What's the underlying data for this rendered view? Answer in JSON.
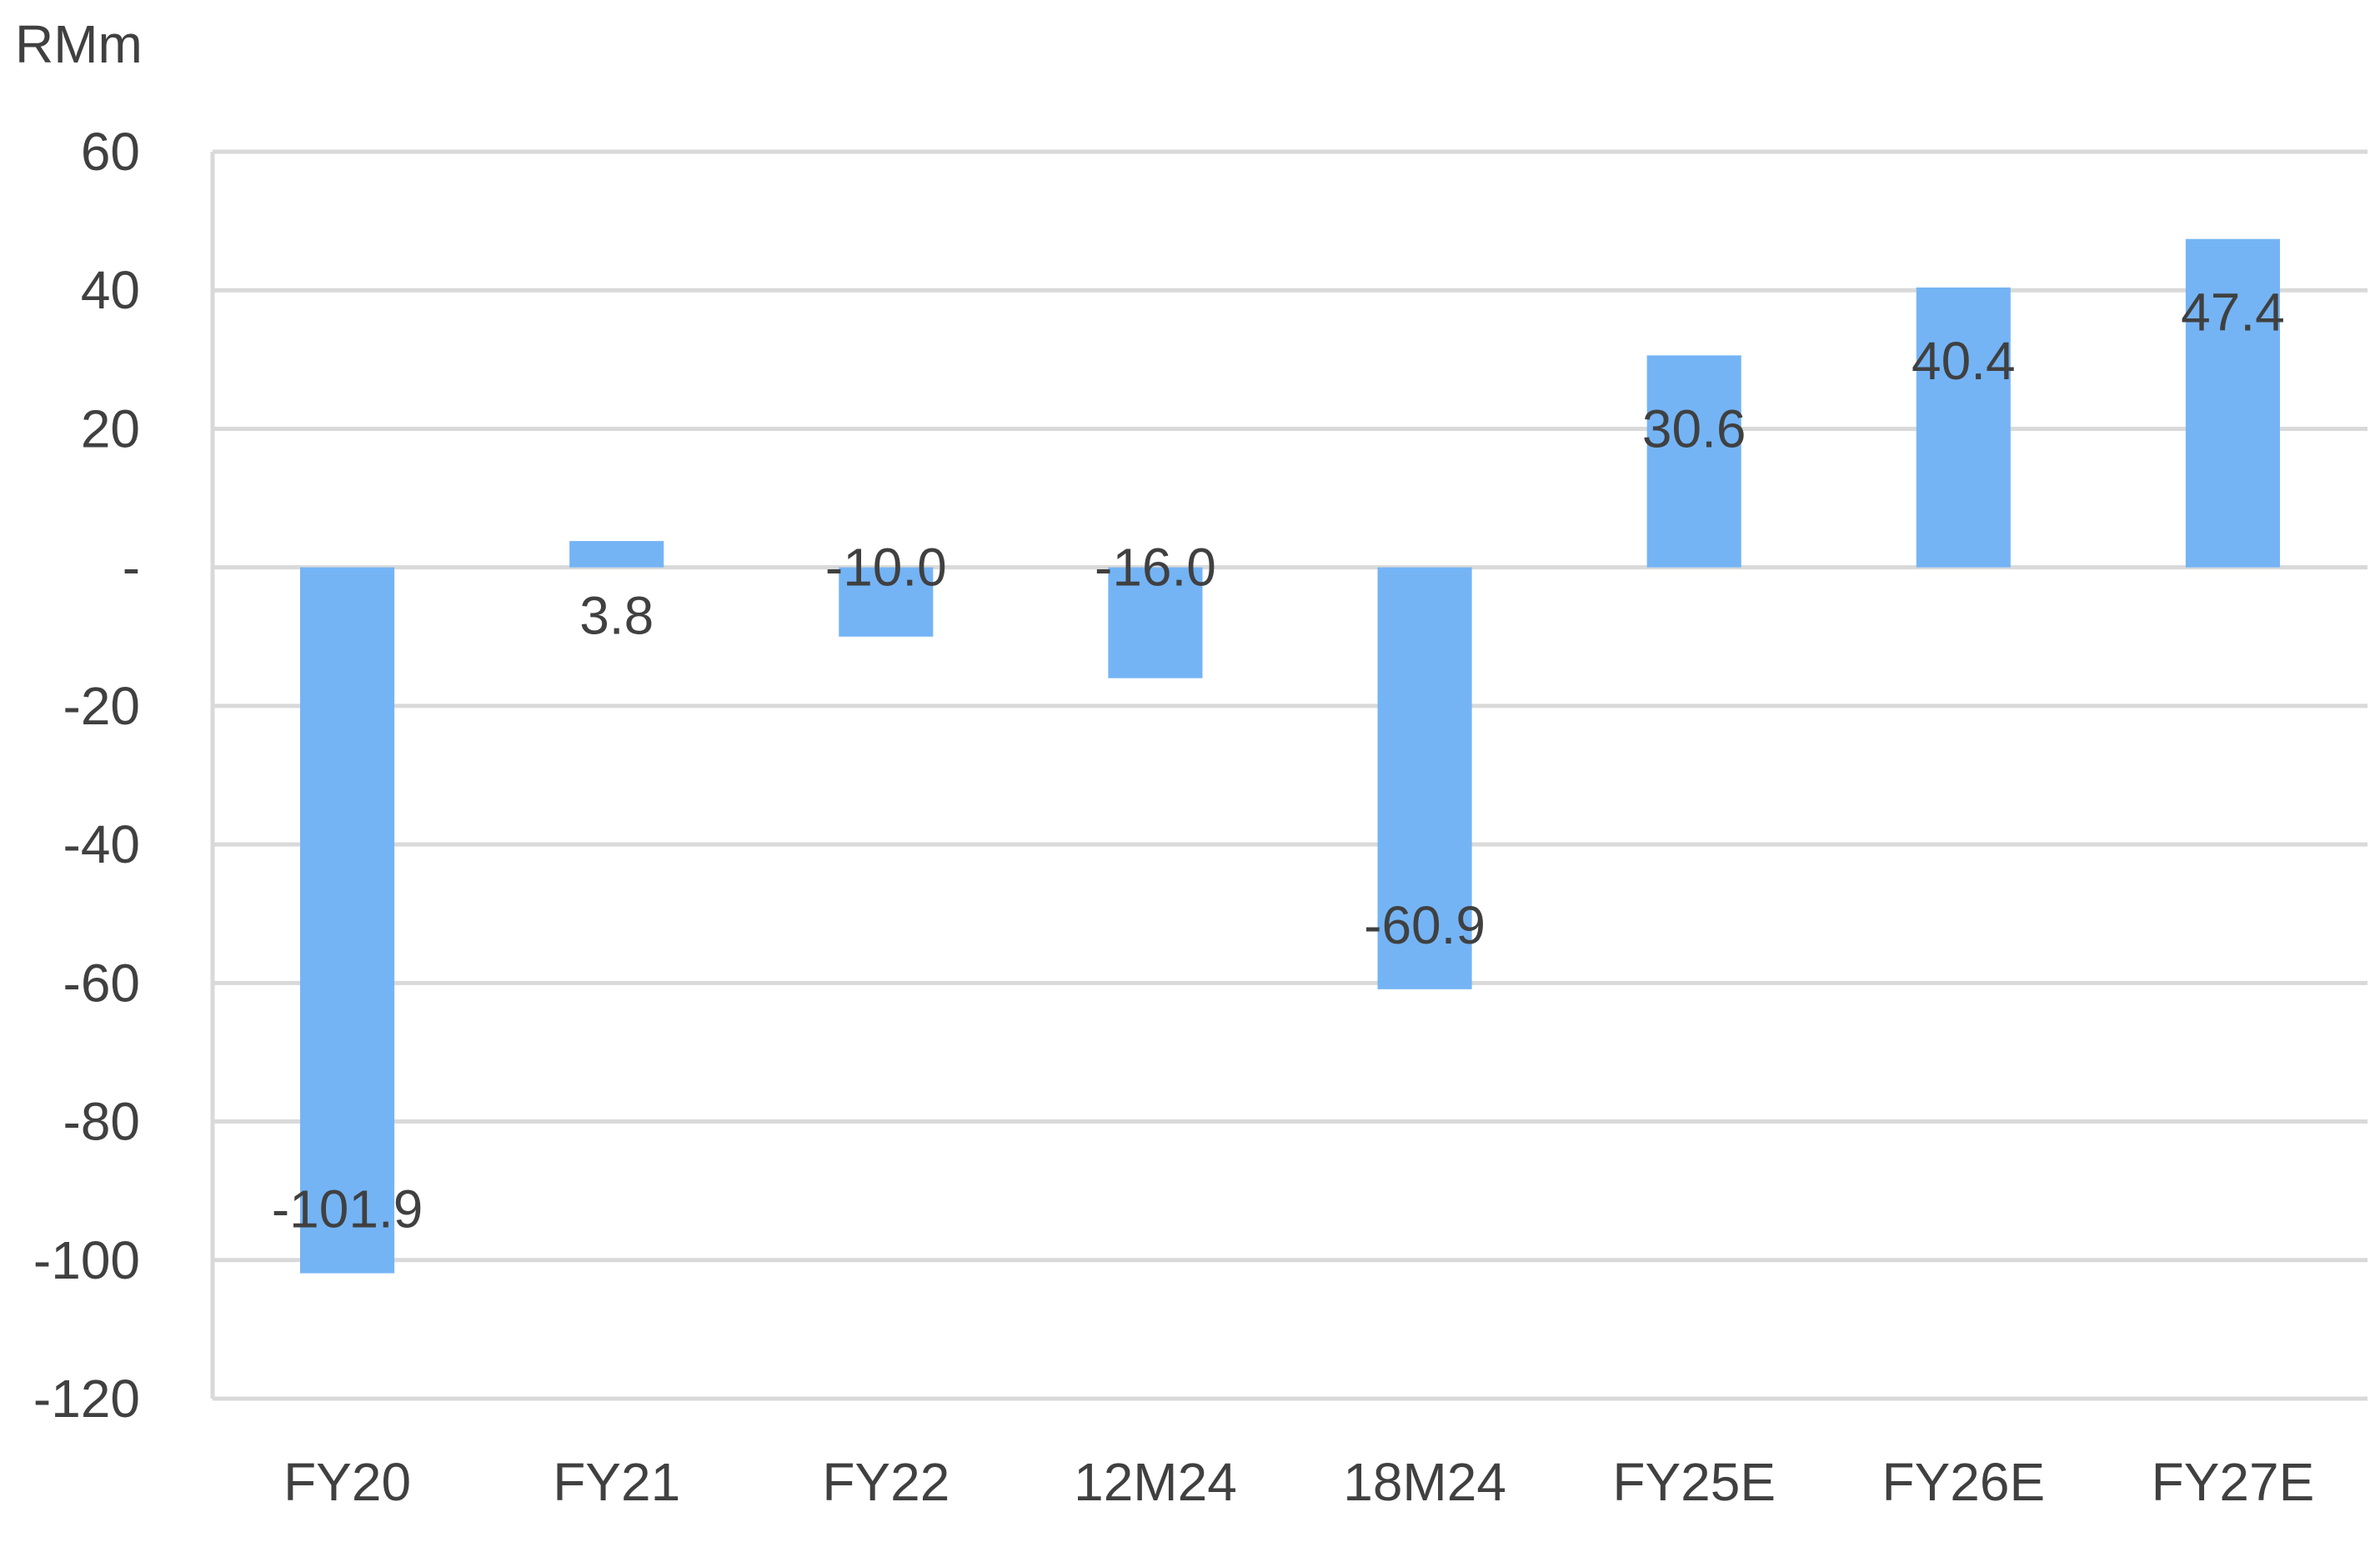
{
  "chart_data": {
    "type": "bar",
    "ylabel": "RMm",
    "categories": [
      "FY20",
      "FY21",
      "FY22",
      "12M24",
      "18M24",
      "FY25E",
      "FY26E",
      "FY27E"
    ],
    "values": [
      -101.9,
      3.8,
      -10.0,
      -16.0,
      -60.9,
      30.6,
      40.4,
      47.4
    ],
    "data_labels": [
      "-101.9",
      "3.8",
      "-10.0",
      "-16.0",
      "-60.9",
      "30.6",
      "40.4",
      "47.4"
    ],
    "ylim": [
      -120,
      60
    ],
    "yticks": [
      60,
      40,
      20,
      0,
      -20,
      -40,
      -60,
      -80,
      -100,
      -120
    ],
    "ytick_labels": [
      "60",
      "40",
      "20",
      "-",
      "-20",
      "-40",
      "-60",
      "-80",
      "-100",
      "-120"
    ],
    "grid": true,
    "bar_color": "#74B4F5",
    "grid_color": "#D9D9D9"
  }
}
